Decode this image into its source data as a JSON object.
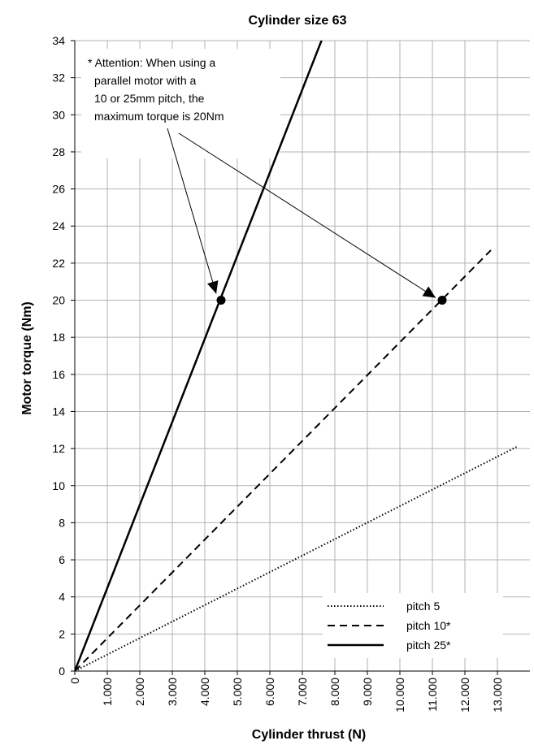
{
  "chart_data": {
    "type": "line",
    "title": "Cylinder size 63",
    "xlabel": "Cylinder thrust (N)",
    "ylabel": "Motor torque (Nm)",
    "xlim": [
      0,
      14000
    ],
    "ylim": [
      0,
      34
    ],
    "x_ticks": [
      {
        "value": 0,
        "label": "0"
      },
      {
        "value": 1000,
        "label": "1.000"
      },
      {
        "value": 2000,
        "label": "2.000"
      },
      {
        "value": 3000,
        "label": "3.000"
      },
      {
        "value": 4000,
        "label": "4.000"
      },
      {
        "value": 5000,
        "label": "5.000"
      },
      {
        "value": 6000,
        "label": "6.000"
      },
      {
        "value": 7000,
        "label": "7.000"
      },
      {
        "value": 8000,
        "label": "8.000"
      },
      {
        "value": 9000,
        "label": "9.000"
      },
      {
        "value": 10000,
        "label": "10.000"
      },
      {
        "value": 11000,
        "label": "11.000"
      },
      {
        "value": 12000,
        "label": "12.000"
      },
      {
        "value": 13000,
        "label": "13.000"
      }
    ],
    "y_ticks": [
      0,
      2,
      4,
      6,
      8,
      10,
      12,
      14,
      16,
      18,
      20,
      22,
      24,
      26,
      28,
      30,
      32,
      34
    ],
    "grid": true,
    "legend_position": "bottom-right",
    "series": [
      {
        "name": "pitch 5",
        "style": "dotted",
        "color": "#000000",
        "x": [
          0,
          13600
        ],
        "y": [
          0,
          12.1
        ]
      },
      {
        "name": "pitch 10*",
        "style": "dashed",
        "color": "#000000",
        "x": [
          0,
          12800
        ],
        "y": [
          0,
          22.7
        ]
      },
      {
        "name": "pitch 25*",
        "style": "solid",
        "color": "#000000",
        "x": [
          0,
          7700
        ],
        "y": [
          0,
          34.5
        ]
      }
    ],
    "highlight_points": [
      {
        "x": 4500,
        "y": 20
      },
      {
        "x": 11300,
        "y": 20
      }
    ],
    "annotation": {
      "lines": [
        "* Attention: When using a",
        "parallel motor with a",
        "10 or 25mm pitch, the",
        "maximum torque is 20Nm"
      ]
    }
  }
}
